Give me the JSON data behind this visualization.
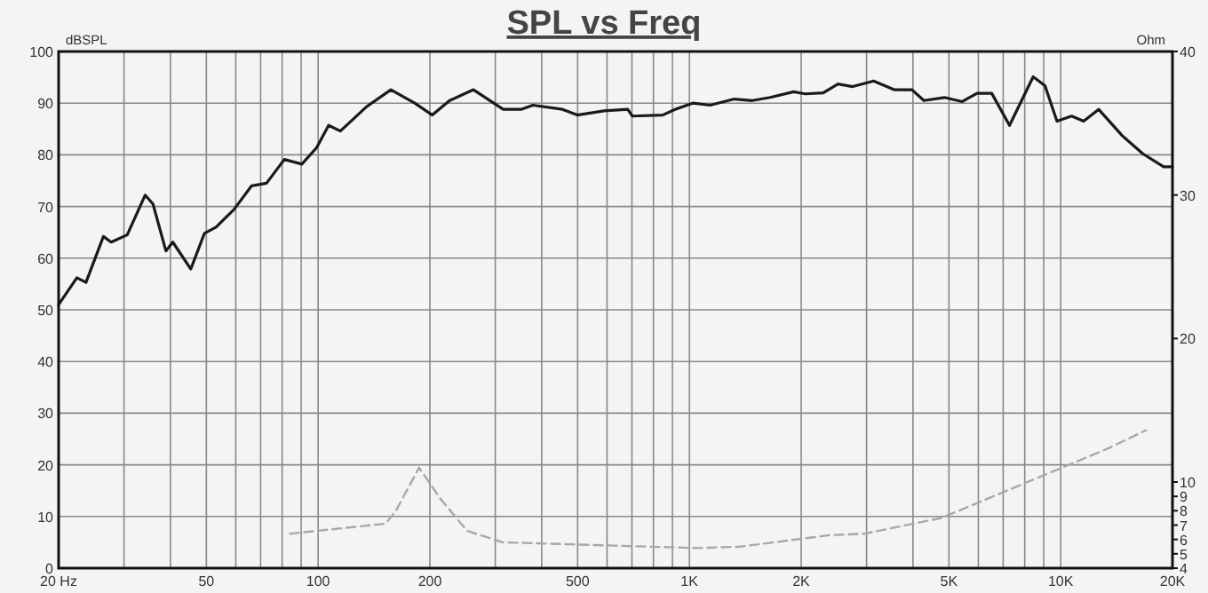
{
  "chart_data": {
    "type": "line",
    "title": "SPL vs Freq",
    "ylabel": "dBSPL",
    "y2label": "Ohm",
    "log": "x",
    "grid": true,
    "marker": "none",
    "xlim": [
      20,
      20000
    ],
    "ylim": [
      0,
      100
    ],
    "y2lim": [
      4,
      40
    ],
    "xticks": [
      {
        "value": 20,
        "label": "20 Hz"
      },
      {
        "value": 30,
        "label": null
      },
      {
        "value": 40,
        "label": null
      },
      50,
      {
        "value": 60,
        "label": null
      },
      {
        "value": 70,
        "label": null
      },
      {
        "value": 80,
        "label": null
      },
      {
        "value": 90,
        "label": null
      },
      100,
      200,
      {
        "value": 300,
        "label": null
      },
      {
        "value": 400,
        "label": null
      },
      500,
      {
        "value": 600,
        "label": null
      },
      {
        "value": 700,
        "label": null
      },
      {
        "value": 800,
        "label": null
      },
      {
        "value": 900,
        "label": null
      },
      {
        "value": 1000,
        "label": "1K"
      },
      {
        "value": 2000,
        "label": "2K"
      },
      {
        "value": 3000,
        "label": null
      },
      {
        "value": 4000,
        "label": null
      },
      {
        "value": 5000,
        "label": "5K"
      },
      {
        "value": 6000,
        "label": null
      },
      {
        "value": 7000,
        "label": null
      },
      {
        "value": 8000,
        "label": null
      },
      {
        "value": 9000,
        "label": null
      },
      {
        "value": 10000,
        "label": "10K"
      },
      {
        "value": 20000,
        "label": "20K"
      }
    ],
    "yticks": [
      0,
      10,
      20,
      30,
      40,
      50,
      60,
      70,
      80,
      90,
      100
    ],
    "y2ticks": [
      4,
      5,
      6,
      7,
      8,
      9,
      10,
      20,
      30,
      40
    ],
    "series": [
      {
        "color": "#1a1a1a",
        "line_style": "solid",
        "x": [
          20,
          22.4,
          23.7,
          26.4,
          27.7,
          30.6,
          34.2,
          35.9,
          38.9,
          40.6,
          45.4,
          49.4,
          53.1,
          59.3,
          66.2,
          72.6,
          81.1,
          90.4,
          99.1,
          106.7,
          114.8,
          135.5,
          157,
          182,
          203,
          226,
          262,
          315,
          352,
          379,
          455,
          499,
          589,
          682,
          702,
          847,
          915,
          1021,
          1137,
          1321,
          1478,
          1650,
          1908,
          2051,
          2293,
          2512,
          2753,
          3133,
          3558,
          3976,
          4280,
          4862,
          5430,
          5950,
          6520,
          7280,
          8430,
          9070,
          9770,
          10700,
          11530,
          12650,
          14650,
          16650,
          18930,
          20000
        ],
        "values": [
          51,
          56.2,
          55.3,
          64.2,
          63.1,
          64.5,
          72.2,
          70.5,
          61.4,
          63.1,
          57.9,
          64.8,
          66,
          69.4,
          74,
          74.5,
          79.1,
          78.2,
          81.4,
          85.7,
          84.6,
          89.4,
          92.6,
          90,
          87.7,
          90.5,
          92.6,
          88.8,
          88.8,
          89.6,
          88.8,
          87.7,
          88.5,
          88.8,
          87.5,
          87.7,
          88.8,
          90,
          89.6,
          90.8,
          90.5,
          91.1,
          92.2,
          91.8,
          92,
          93.7,
          93.2,
          94.3,
          92.6,
          92.6,
          90.5,
          91.1,
          90.3,
          91.9,
          91.9,
          85.7,
          95.1,
          93.4,
          86.5,
          87.5,
          86.5,
          88.8,
          83.7,
          80.2,
          77.7,
          77.7
        ]
      },
      {
        "color": "#a8a8a8",
        "line_style": "dashed",
        "axis": "y2",
        "x": [
          84,
          152,
          162,
          187,
          214,
          252,
          314,
          1045,
          1375,
          2388,
          2960,
          4775,
          13300,
          16950
        ],
        "values": [
          6.4,
          7.1,
          8,
          11,
          8.8,
          6.6,
          5.8,
          5.4,
          5.5,
          6.3,
          6.4,
          7.5,
          12.3,
          13.6
        ]
      }
    ]
  }
}
